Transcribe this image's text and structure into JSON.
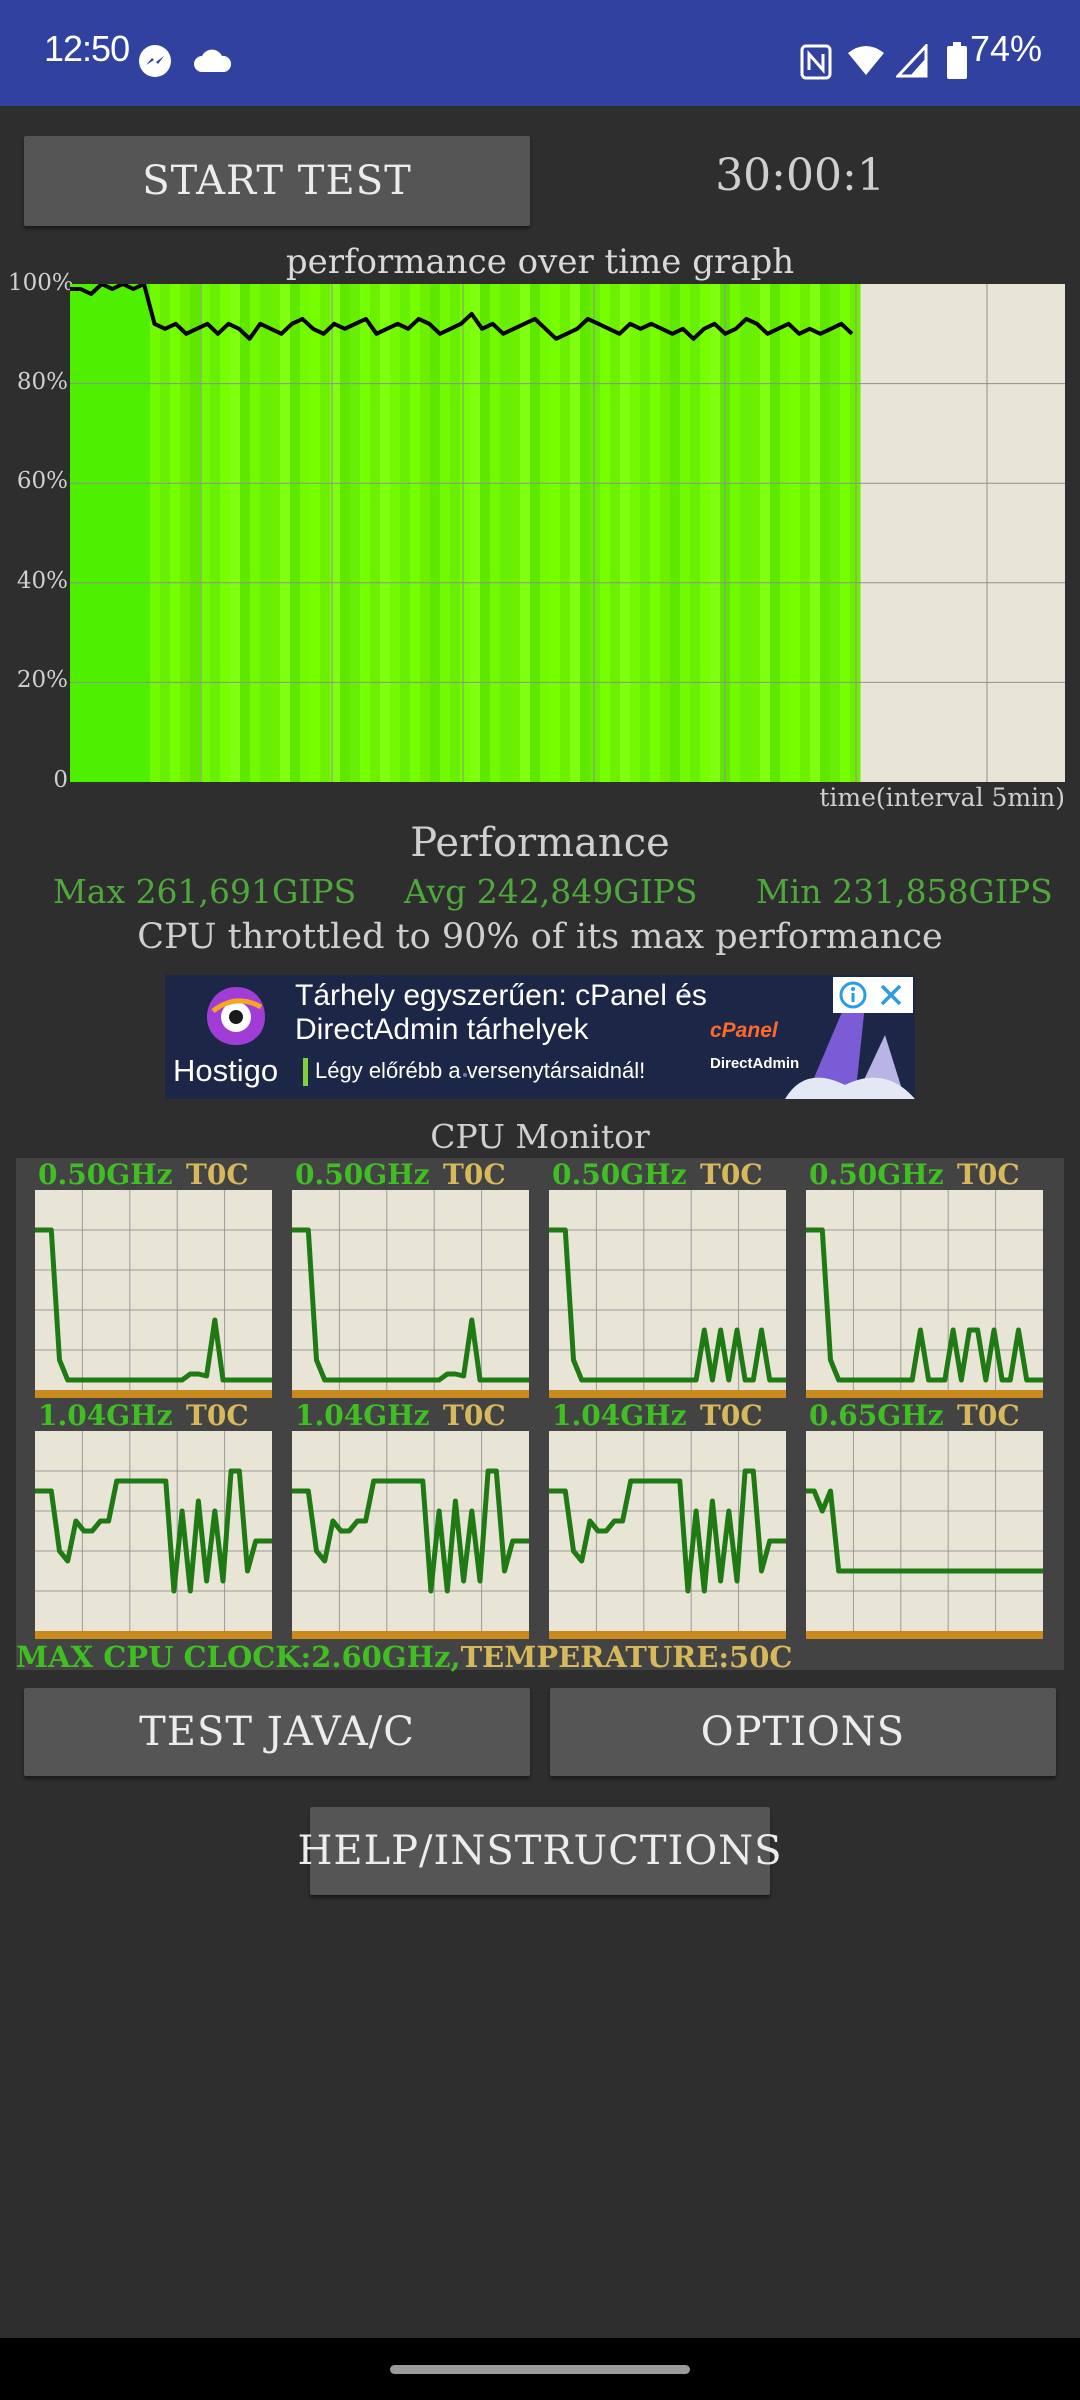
{
  "status_bar": {
    "time": "12:50",
    "battery": "74%",
    "icons": [
      "messenger-icon",
      "cloud-icon",
      "nfc-icon",
      "wifi-icon",
      "cell-signal-icon",
      "battery-icon"
    ]
  },
  "controls": {
    "start_label": "START TEST",
    "timer": "30:00:1"
  },
  "graph": {
    "title": "performance over time graph",
    "y_ticks": [
      "100%",
      "80%",
      "60%",
      "40%",
      "20%",
      "0"
    ],
    "x_label": "time(interval 5min)"
  },
  "chart_data": {
    "type": "line",
    "title": "performance over time graph",
    "xlabel": "time(interval 5min)",
    "ylabel": "",
    "ylim": [
      0,
      100
    ],
    "grid": true,
    "series": [
      {
        "values": [
          99,
          99,
          98,
          100,
          99,
          100,
          99,
          100,
          92,
          91,
          92,
          90,
          91,
          92,
          90,
          92,
          91,
          89,
          92,
          91,
          90,
          92,
          93,
          91,
          90,
          92,
          91,
          92,
          93,
          90,
          91,
          92,
          91,
          93,
          92,
          90,
          91,
          92,
          94,
          91,
          92,
          90,
          91,
          92,
          93,
          91,
          89,
          90,
          91,
          93,
          92,
          91,
          90,
          92,
          91,
          92,
          91,
          90,
          91,
          89,
          91,
          92,
          90,
          91,
          93,
          92,
          90,
          91,
          92,
          90,
          91,
          90,
          91,
          92,
          90
        ]
      }
    ]
  },
  "performance": {
    "title": "Performance",
    "max": "Max 261,691GIPS",
    "avg": "Avg 242,849GIPS",
    "min": "Min 231,858GIPS",
    "throttle": "CPU throttled to 90% of its max performance"
  },
  "ad": {
    "headline_1": "Tárhely egyszerűen: cPanel és",
    "headline_2": "DirectAdmin tárhelyek",
    "brand": "Hostigo",
    "tagline": "Légy előrébb a versenytársaidnál!",
    "cpanel": "cPanel",
    "directadmin": "DirectAdmin"
  },
  "cpu_monitor": {
    "title": "CPU Monitor",
    "cores": [
      {
        "freq": "0.50GHz",
        "temp": "T0C",
        "load": [
          80,
          80,
          80,
          15,
          5,
          5,
          5,
          5,
          5,
          5,
          5,
          5,
          5,
          5,
          5,
          5,
          5,
          5,
          5,
          8,
          8,
          7,
          35,
          5,
          5,
          5,
          5,
          5,
          5,
          5
        ]
      },
      {
        "freq": "0.50GHz",
        "temp": "T0C",
        "load": [
          80,
          80,
          80,
          15,
          5,
          5,
          5,
          5,
          5,
          5,
          5,
          5,
          5,
          5,
          5,
          5,
          5,
          5,
          5,
          8,
          8,
          7,
          35,
          5,
          5,
          5,
          5,
          5,
          5,
          5
        ]
      },
      {
        "freq": "0.50GHz",
        "temp": "T0C",
        "load": [
          80,
          80,
          80,
          15,
          5,
          5,
          5,
          5,
          5,
          5,
          5,
          5,
          5,
          5,
          5,
          5,
          5,
          5,
          5,
          30,
          5,
          30,
          5,
          30,
          5,
          5,
          30,
          5,
          5,
          5
        ]
      },
      {
        "freq": "0.50GHz",
        "temp": "T0C",
        "load": [
          80,
          80,
          80,
          15,
          5,
          5,
          5,
          5,
          5,
          5,
          5,
          5,
          5,
          5,
          30,
          5,
          5,
          5,
          30,
          5,
          30,
          30,
          5,
          30,
          5,
          5,
          30,
          5,
          5,
          5
        ]
      },
      {
        "freq": "1.04GHz",
        "temp": "T0C",
        "load": [
          70,
          70,
          70,
          40,
          35,
          55,
          50,
          50,
          55,
          55,
          75,
          75,
          75,
          75,
          75,
          75,
          75,
          20,
          60,
          20,
          65,
          25,
          60,
          25,
          80,
          80,
          30,
          45,
          45,
          45
        ]
      },
      {
        "freq": "1.04GHz",
        "temp": "T0C",
        "load": [
          70,
          70,
          70,
          40,
          35,
          55,
          50,
          50,
          55,
          55,
          75,
          75,
          75,
          75,
          75,
          75,
          75,
          20,
          60,
          20,
          65,
          25,
          60,
          25,
          80,
          80,
          30,
          45,
          45,
          45
        ]
      },
      {
        "freq": "1.04GHz",
        "temp": "T0C",
        "load": [
          70,
          70,
          70,
          40,
          35,
          55,
          50,
          50,
          55,
          55,
          75,
          75,
          75,
          75,
          75,
          75,
          75,
          20,
          60,
          20,
          65,
          25,
          60,
          25,
          80,
          80,
          30,
          45,
          45,
          45
        ]
      },
      {
        "freq": "0.65GHz",
        "temp": "T0C",
        "load": [
          70,
          70,
          60,
          70,
          30,
          30,
          30,
          30,
          30,
          30,
          30,
          30,
          30,
          30,
          30,
          30,
          30,
          30,
          30,
          30,
          30,
          30,
          30,
          30,
          30,
          30,
          30,
          30,
          30,
          30
        ]
      }
    ],
    "max_clock": "MAX CPU CLOCK:2.60GHz,",
    "temperature": "TEMPERATURE:50C"
  },
  "buttons": {
    "test_java": "TEST JAVA/C",
    "options": "OPTIONS",
    "help": "HELP/INSTRUCTIONS"
  }
}
